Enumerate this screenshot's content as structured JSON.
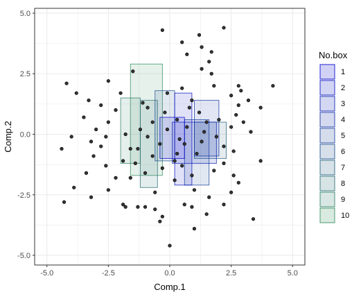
{
  "chart_data": {
    "type": "scatter",
    "xlabel": "Comp.1",
    "ylabel": "Comp.2",
    "xlim": [
      -5.5,
      5.5
    ],
    "ylim": [
      -5.4,
      5.2
    ],
    "xticks": [
      -5.0,
      -2.5,
      0.0,
      2.5,
      5.0
    ],
    "yticks": [
      -5.0,
      -2.5,
      0.0,
      2.5,
      5.0
    ],
    "xtick_labels": [
      "-5.0",
      "-2.5",
      "0.0",
      "2.5",
      "5.0"
    ],
    "ytick_labels": [
      "-5.0",
      "-2.5",
      "0.0",
      "2.5",
      "5.0"
    ],
    "grid": true,
    "legend": {
      "title": "No.box",
      "position": "right",
      "labels": [
        "1",
        "2",
        "3",
        "4",
        "5",
        "6",
        "7",
        "8",
        "9",
        "10"
      ]
    },
    "colors": {
      "point_fill": "#333333",
      "box_low": "#0000cc",
      "box_high": "#2e8b57",
      "grid": "#ebebeb",
      "panel_border": "#333333"
    },
    "boxes": [
      {
        "id": 1,
        "x": [
          -0.4,
          0.6
        ],
        "y": [
          -1.0,
          0.7
        ]
      },
      {
        "id": 2,
        "x": [
          0.2,
          0.9
        ],
        "y": [
          -2.1,
          1.7
        ]
      },
      {
        "id": 3,
        "x": [
          0.1,
          1.9
        ],
        "y": [
          -1.2,
          0.5
        ]
      },
      {
        "id": 4,
        "x": [
          1.0,
          2.0
        ],
        "y": [
          -0.9,
          1.4
        ]
      },
      {
        "id": 5,
        "x": [
          0.6,
          1.6
        ],
        "y": [
          -2.1,
          0.6
        ]
      },
      {
        "id": 6,
        "x": [
          -0.6,
          0.2
        ],
        "y": [
          -1.1,
          1.8
        ]
      },
      {
        "id": 7,
        "x": [
          1.0,
          2.3
        ],
        "y": [
          -1.0,
          0.5
        ]
      },
      {
        "id": 8,
        "x": [
          -1.2,
          -0.5
        ],
        "y": [
          -2.2,
          1.4
        ]
      },
      {
        "id": 9,
        "x": [
          -2.0,
          -1.2
        ],
        "y": [
          -1.2,
          1.5
        ]
      },
      {
        "id": 10,
        "x": [
          -1.6,
          -0.3
        ],
        "y": [
          -1.7,
          2.9
        ]
      }
    ],
    "points": [
      [
        -0.3,
        4.3
      ],
      [
        2.2,
        4.4
      ],
      [
        1.2,
        4.1
      ],
      [
        0.5,
        3.8
      ],
      [
        1.3,
        3.6
      ],
      [
        1.7,
        3.4
      ],
      [
        0.7,
        3.3
      ],
      [
        1.6,
        3.0
      ],
      [
        1.7,
        2.5
      ],
      [
        -1.5,
        2.6
      ],
      [
        1.3,
        2.7
      ],
      [
        -2.5,
        2.2
      ],
      [
        1.8,
        2.0
      ],
      [
        -4.2,
        2.1
      ],
      [
        4.2,
        2.0
      ],
      [
        2.8,
        2.0
      ],
      [
        -3.8,
        1.7
      ],
      [
        -2.0,
        1.7
      ],
      [
        -0.1,
        1.7
      ],
      [
        0.5,
        1.9
      ],
      [
        2.9,
        1.8
      ],
      [
        2.5,
        1.6
      ],
      [
        -3.3,
        1.4
      ],
      [
        -1.1,
        1.3
      ],
      [
        0.8,
        1.1
      ],
      [
        2.8,
        1.2
      ],
      [
        3.2,
        1.4
      ],
      [
        -2.8,
        1.2
      ],
      [
        -2.2,
        1.0
      ],
      [
        1.2,
        0.9
      ],
      [
        2.7,
        0.8
      ],
      [
        3.7,
        1.1
      ],
      [
        -3.5,
        0.7
      ],
      [
        -2.5,
        0.5
      ],
      [
        -0.7,
        0.5
      ],
      [
        0.3,
        0.6
      ],
      [
        2.0,
        0.6
      ],
      [
        3.0,
        0.5
      ],
      [
        -3.0,
        0.2
      ],
      [
        -1.8,
        0.0
      ],
      [
        1.4,
        0.1
      ],
      [
        2.5,
        0.3
      ],
      [
        -4.0,
        -0.1
      ],
      [
        -2.6,
        -0.1
      ],
      [
        -0.9,
        -0.1
      ],
      [
        3.3,
        0.1
      ],
      [
        -3.2,
        -0.3
      ],
      [
        -1.6,
        -0.6
      ],
      [
        0.6,
        -0.4
      ],
      [
        2.2,
        -0.5
      ],
      [
        -4.4,
        -0.6
      ],
      [
        -2.8,
        -0.5
      ],
      [
        -1.3,
        -0.6
      ],
      [
        1.1,
        -0.8
      ],
      [
        2.6,
        -0.7
      ],
      [
        -3.1,
        -0.9
      ],
      [
        -1.9,
        -1.1
      ],
      [
        0.2,
        -1.1
      ],
      [
        2.2,
        -1.2
      ],
      [
        3.7,
        -1.1
      ],
      [
        -2.6,
        -1.3
      ],
      [
        -0.3,
        -1.4
      ],
      [
        1.8,
        -1.5
      ],
      [
        -3.4,
        -1.6
      ],
      [
        -1.0,
        -1.6
      ],
      [
        0.9,
        -1.7
      ],
      [
        2.6,
        -1.7
      ],
      [
        -2.2,
        -1.8
      ],
      [
        -1.6,
        -1.8
      ],
      [
        0.2,
        -1.9
      ],
      [
        2.8,
        -2.0
      ],
      [
        -3.9,
        -2.2
      ],
      [
        -2.5,
        -2.3
      ],
      [
        -0.6,
        -2.4
      ],
      [
        1.0,
        -2.3
      ],
      [
        2.5,
        -2.4
      ],
      [
        -3.2,
        -2.6
      ],
      [
        1.6,
        -2.6
      ],
      [
        -4.3,
        -2.8
      ],
      [
        -1.9,
        -2.9
      ],
      [
        0.6,
        -2.9
      ],
      [
        2.2,
        -2.9
      ],
      [
        -1.8,
        -3.0
      ],
      [
        -1.3,
        -3.0
      ],
      [
        -1.0,
        -3.0
      ],
      [
        -0.6,
        -3.1
      ],
      [
        0.9,
        -3.0
      ],
      [
        -0.3,
        -3.4
      ],
      [
        1.5,
        -3.3
      ],
      [
        3.4,
        -3.5
      ],
      [
        -0.4,
        -3.6
      ],
      [
        1.0,
        -3.9
      ],
      [
        0.0,
        -4.6
      ],
      [
        -0.1,
        0.2
      ],
      [
        0.4,
        -0.2
      ],
      [
        -0.4,
        -0.4
      ],
      [
        0.7,
        0.3
      ],
      [
        -0.7,
        -0.9
      ],
      [
        0.3,
        -0.8
      ],
      [
        1.3,
        -0.3
      ],
      [
        -1.2,
        0.2
      ],
      [
        1.5,
        0.5
      ],
      [
        -0.2,
        0.9
      ],
      [
        0.9,
        1.4
      ],
      [
        -0.9,
        1.1
      ],
      [
        1.9,
        -0.1
      ],
      [
        -1.4,
        -1.2
      ],
      [
        0.5,
        -1.3
      ]
    ]
  }
}
